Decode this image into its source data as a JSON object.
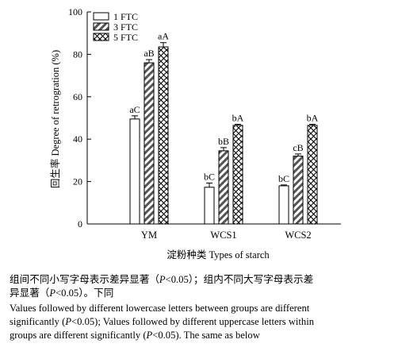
{
  "chart_data": {
    "type": "bar",
    "categories": [
      "YM",
      "WCS1",
      "WCS2"
    ],
    "series": [
      {
        "name": "1 FTC",
        "pattern": "plain",
        "values": [
          49.5,
          17.3,
          18.0
        ],
        "errors": [
          1.5,
          2.0,
          0.4
        ],
        "labels": [
          "aC",
          "bC",
          "bC"
        ]
      },
      {
        "name": "3 FTC",
        "pattern": "diagonal",
        "values": [
          76.0,
          34.5,
          32.0
        ],
        "errors": [
          1.5,
          1.5,
          1.0
        ],
        "labels": [
          "aB",
          "bB",
          "cB"
        ]
      },
      {
        "name": "5 FTC",
        "pattern": "crosshatch",
        "values": [
          83.5,
          46.5,
          46.5
        ],
        "errors": [
          2.0,
          0.5,
          0.5
        ],
        "labels": [
          "aA",
          "bA",
          "bA"
        ]
      }
    ],
    "xlabel": "淀粉种类 Types of starch",
    "ylabel": "回生率 Degree of retrogration (%)",
    "ylim": [
      0,
      100
    ],
    "yticks": [
      0,
      20,
      40,
      60,
      80,
      100
    ],
    "legend_position": "top-left",
    "grid": false
  },
  "notes": {
    "cn_1": "组间不同小写字母表示差异显著（",
    "cn_p": "P",
    "cn_2": "<0.05）；组内不同大写字母表示差",
    "cn_3": "异显著（",
    "cn_p2": "P",
    "cn_4": "<0.05）。下同",
    "en_1": "Values followed by different lowercase letters between groups are different",
    "en_2a": "significantly (",
    "en_p1": "P",
    "en_2b": "<0.05); Values followed by different uppercase letters within",
    "en_3a": "groups are different significantly (",
    "en_p2": "P",
    "en_3b": "<0.05). The same as below"
  }
}
